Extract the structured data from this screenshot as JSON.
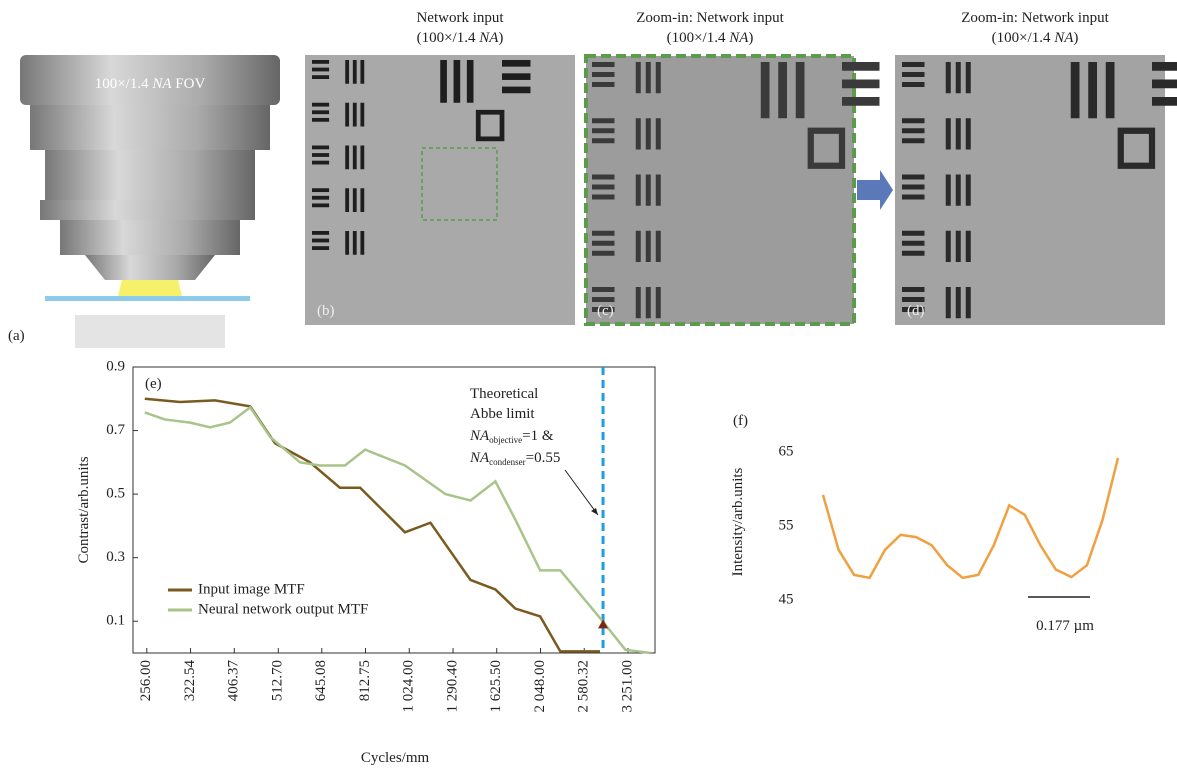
{
  "panel_labels": {
    "a": "(a)",
    "b": "(b)",
    "c": "(c)",
    "d": "(d)",
    "e": "(e)",
    "f": "(f)"
  },
  "fov_label": [
    "100×/1.4 ",
    "NA",
    " FOV"
  ],
  "captions": {
    "b": {
      "line1": "Network input",
      "line2": [
        "(100×/1.4 ",
        "NA",
        ")"
      ]
    },
    "c": {
      "line1": "Zoom-in: Network input",
      "line2": [
        "(100×/1.4 ",
        "NA",
        ")"
      ]
    },
    "d": {
      "line1": "Zoom-in: Network input",
      "line2": [
        "(100×/1.4 ",
        "NA",
        ")"
      ]
    }
  },
  "chart_data": [
    {
      "type": "line",
      "xlabel": "Cycles/mm",
      "ylabel": "Contrast/arb.units",
      "xscale": "log",
      "xlim": [
        238,
        3750
      ],
      "ylim": [
        0,
        0.9
      ],
      "xticks": [
        {
          "value": 256,
          "label": "256.00"
        },
        {
          "value": 322.54,
          "label": "322.54"
        },
        {
          "value": 406.37,
          "label": "406.37"
        },
        {
          "value": 512.7,
          "label": "512.70"
        },
        {
          "value": 645.08,
          "label": "645.08"
        },
        {
          "value": 812.75,
          "label": "812.75"
        },
        {
          "value": 1024,
          "label": "1 024.00"
        },
        {
          "value": 1290.4,
          "label": "1 290.40"
        },
        {
          "value": 1625.5,
          "label": "1 625.50"
        },
        {
          "value": 2048,
          "label": "2 048.00"
        },
        {
          "value": 2580.32,
          "label": "2 580.32"
        },
        {
          "value": 3251,
          "label": "3 251.00"
        }
      ],
      "yticks": [
        0.1,
        0.3,
        0.5,
        0.7,
        0.9
      ],
      "legend": "lower left",
      "series": [
        {
          "name": "Input image MTF",
          "color": "#7a5a1e",
          "x": [
            253.3,
            305,
            367,
            442,
            504,
            606,
            710,
            790,
            1001,
            1145,
            1415,
            1614,
            1793,
            2045,
            2274,
            2805
          ],
          "values": [
            0.8,
            0.79,
            0.795,
            0.776,
            0.66,
            0.6,
            0.52,
            0.52,
            0.38,
            0.41,
            0.23,
            0.2,
            0.14,
            0.115,
            0.005,
            0.005
          ]
        },
        {
          "name": "Neural network output MTF",
          "color": "#a8c48a",
          "x": [
            253.3,
            281.3,
            321.9,
            357.6,
            397,
            442,
            491,
            575,
            639,
            729,
            811,
            1001,
            1240,
            1415,
            1614,
            1793,
            2045,
            2274,
            2805,
            3208,
            3663
          ],
          "values": [
            0.757,
            0.735,
            0.725,
            0.71,
            0.725,
            0.773,
            0.68,
            0.6,
            0.59,
            0.59,
            0.64,
            0.59,
            0.5,
            0.48,
            0.54,
            0.42,
            0.26,
            0.26,
            0.11,
            0.01,
            0.0
          ]
        }
      ],
      "abbe_limit": {
        "x": 2850,
        "y": 0.09,
        "color": "#1e9ee0"
      },
      "annotation": {
        "lines": [
          "Theoretical",
          "Abbe limit"
        ],
        "formulas": [
          {
            "symbol": "NA",
            "sub": "objective",
            "rest": "=1 &"
          },
          {
            "symbol": "NA",
            "sub": "condenser",
            "rest": "=0.55"
          }
        ]
      }
    },
    {
      "type": "line",
      "ylabel": "Intensity/arb.units",
      "ylim": [
        45,
        65
      ],
      "yticks": [
        45,
        55,
        65
      ],
      "series": [
        {
          "color": "#f0a040",
          "values": [
            59.2,
            51.8,
            48.4,
            48.0,
            51.8,
            53.8,
            53.5,
            52.4,
            49.7,
            48.0,
            48.4,
            52.4,
            57.8,
            56.5,
            52.4,
            49.1,
            48.1,
            49.7,
            55.8,
            64.2
          ]
        }
      ],
      "scale_bar": "0.177 µm"
    }
  ]
}
